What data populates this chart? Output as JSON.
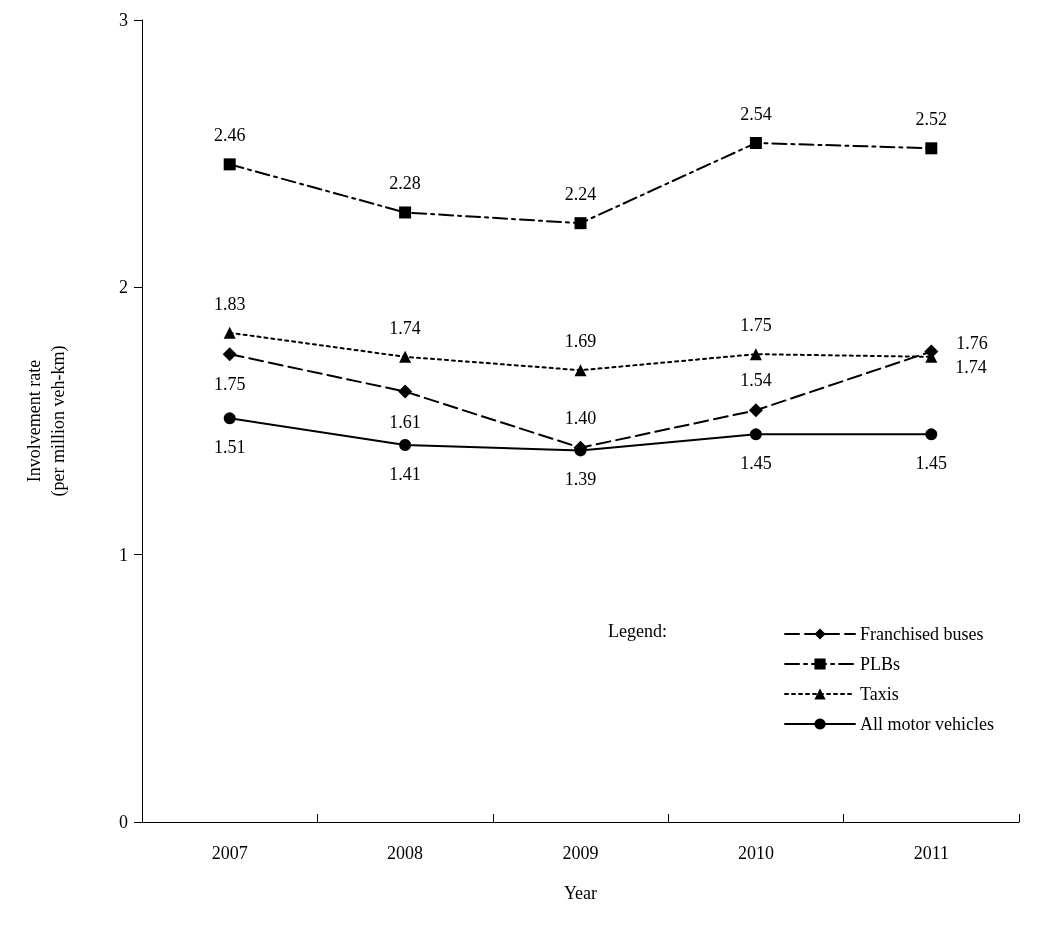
{
  "chart_data": {
    "type": "line",
    "xlabel": "Year",
    "ylabel": "Involvement rate\n(per million veh-km)",
    "categories": [
      "2007",
      "2008",
      "2009",
      "2010",
      "2011"
    ],
    "series": [
      {
        "name": "Franchised buses",
        "color": "#000000",
        "values": [
          1.75,
          1.61,
          1.4,
          1.54,
          1.76
        ],
        "value_labels": [
          "1.75",
          "1.61",
          "1.40",
          "1.54",
          "1.76"
        ],
        "marker": "diamond",
        "line_style": "dashed"
      },
      {
        "name": "PLBs",
        "color": "#000000",
        "values": [
          2.46,
          2.28,
          2.24,
          2.54,
          2.52
        ],
        "value_labels": [
          "2.46",
          "2.28",
          "2.24",
          "2.54",
          "2.52"
        ],
        "marker": "square",
        "line_style": "dashdot"
      },
      {
        "name": "Taxis",
        "color": "#000000",
        "values": [
          1.83,
          1.74,
          1.69,
          1.75,
          1.74
        ],
        "value_labels": [
          "1.83",
          "1.74",
          "1.69",
          "1.75",
          "1.74"
        ],
        "marker": "triangle",
        "line_style": "dotted"
      },
      {
        "name": "All motor vehicles",
        "color": "#000000",
        "values": [
          1.51,
          1.41,
          1.39,
          1.45,
          1.45
        ],
        "value_labels": [
          "1.51",
          "1.41",
          "1.39",
          "1.45",
          "1.45"
        ],
        "marker": "circle",
        "line_style": "solid"
      }
    ],
    "ylim": [
      0,
      3
    ],
    "yticks": [
      0,
      1,
      2,
      3
    ],
    "grid": false,
    "legend": "bottom right",
    "legend_title": "Legend:"
  }
}
